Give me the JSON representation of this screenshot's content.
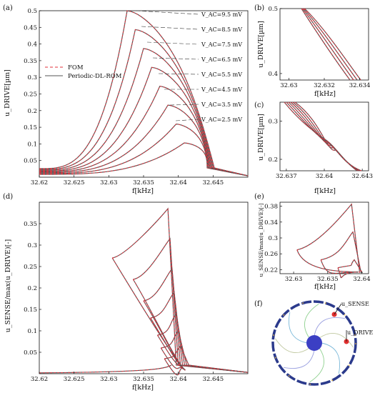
{
  "figure": {
    "panel_labels": [
      "(a)",
      "(b)",
      "(c)",
      "(d)",
      "(e)",
      "(f)"
    ]
  },
  "colors": {
    "fom": "#e0303a",
    "rom": "#555555",
    "ring": "#2b3a8c",
    "ring_accent": "#e6b43c",
    "hub": "#3b3fc4",
    "marker": "#e03030"
  },
  "chart_data": [
    {
      "id": "a",
      "type": "line",
      "xlabel": "f[kHz]",
      "ylabel": "u_DRIVE[µm]",
      "xlim": [
        32.62,
        32.65
      ],
      "ylim": [
        0,
        0.5
      ],
      "xticks": [
        "32.62",
        "32.625",
        "32.63",
        "32.635",
        "32.64",
        "32.645"
      ],
      "yticks": [
        "0.05",
        "0.1",
        "0.15",
        "0.2",
        "0.25",
        "0.3",
        "0.35",
        "0.4",
        "0.45",
        "0.5"
      ],
      "legend": {
        "position": "top-left",
        "entries": [
          "FOM",
          "Periodic-DL-ROM"
        ]
      },
      "series_labels": [
        "V_AC=9.5 mV",
        "V_AC=8.5 mV",
        "V_AC=7.5 mV",
        "V_AC=6.5 mV",
        "V_AC=5.5 mV",
        "V_AC=4.5 mV",
        "V_AC=3.5 mV",
        "V_AC=2.5 mV"
      ],
      "grid": false
    },
    {
      "id": "b",
      "type": "line",
      "xlabel": "f[kHz]",
      "ylabel": "u_DRIVE[µm]",
      "xlim": [
        32.6295,
        32.6345
      ],
      "ylim": [
        0.39,
        0.5
      ],
      "xticks": [
        "32.63",
        "32.632",
        "32.634"
      ],
      "yticks": [
        "0.4",
        "0.5"
      ]
    },
    {
      "id": "c",
      "type": "line",
      "xlabel": "f[kHz]",
      "ylabel": "u_DRIVE[µm]",
      "xlim": [
        32.6365,
        32.6435
      ],
      "ylim": [
        0.17,
        0.35
      ],
      "xticks": [
        "32.637",
        "32.64",
        "32.643"
      ],
      "yticks": [
        "0.2",
        "0.3"
      ]
    },
    {
      "id": "d",
      "type": "line",
      "xlabel": "f[kHz]",
      "ylabel": "u_SENSE/max(u_DRIVE)[-]",
      "xlim": [
        32.62,
        32.65
      ],
      "ylim": [
        0,
        0.4
      ],
      "xticks": [
        "32.62",
        "32.625",
        "32.63",
        "32.635",
        "32.64",
        "32.645"
      ],
      "yticks": [
        "0.05",
        "0.1",
        "0.15",
        "0.2",
        "0.25",
        "0.3",
        "0.35"
      ]
    },
    {
      "id": "e",
      "type": "line",
      "xlabel": "f[kHz]",
      "ylabel": "u_SENSE/max(u_DRIVE)[-]",
      "xlim": [
        32.628,
        32.641
      ],
      "ylim": [
        0.21,
        0.39
      ],
      "xticks": [
        "32.63",
        "32.635",
        "32.64"
      ],
      "yticks": [
        "0.22",
        "0.26",
        "0.3",
        "0.34",
        "0.38"
      ]
    }
  ],
  "diagram_f": {
    "sense_label": "u_SENSE",
    "drive_label": "u_DRIVE"
  }
}
